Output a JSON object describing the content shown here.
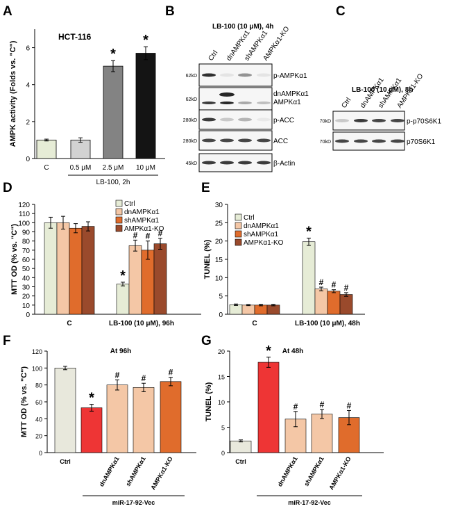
{
  "panel_letters": {
    "a": "A",
    "b": "B",
    "c": "C",
    "d": "D",
    "e": "E",
    "f": "F",
    "g": "G"
  },
  "colors": {
    "cream": "#e6ecd6",
    "ltgray": "#d2d2d2",
    "gray": "#838383",
    "black": "#141414",
    "peach": "#f4c7a6",
    "orange": "#e06c2c",
    "brown": "#9a4a2c",
    "red": "#ee3535",
    "offwhite": "#e8e8dc"
  },
  "chart_data": [
    {
      "panel": "A",
      "type": "bar",
      "title": "HCT-116",
      "ylabel": "AMPK activity (Folds vs. \"C\")",
      "ylim": [
        0,
        7
      ],
      "yticks": [
        0,
        2,
        4,
        6
      ],
      "categories": [
        "C",
        "0.5 μM",
        "2.5 μM",
        "10 μM"
      ],
      "values": [
        1.0,
        1.0,
        5.0,
        5.7
      ],
      "errors": [
        0.05,
        0.12,
        0.3,
        0.35
      ],
      "significance": [
        "",
        "",
        "*",
        "*"
      ],
      "group_label": "LB-100, 2h"
    },
    {
      "panel": "D",
      "type": "bar",
      "ylabel": "MTT OD (% vs. \"C\")",
      "ylim": [
        0,
        120
      ],
      "yticks": [
        0,
        10,
        20,
        30,
        40,
        50,
        60,
        70,
        80,
        90,
        100,
        110,
        120
      ],
      "categories": [
        "C",
        "LB-100 (10 μM), 96h"
      ],
      "series": [
        {
          "name": "Ctrl",
          "values": [
            100,
            33
          ],
          "errors": [
            6,
            2
          ],
          "significance": [
            "",
            "*"
          ]
        },
        {
          "name": "dnAMPKα1",
          "values": [
            100,
            75
          ],
          "errors": [
            7,
            6
          ],
          "significance": [
            "",
            "#"
          ]
        },
        {
          "name": "shAMPKα1",
          "values": [
            94,
            70
          ],
          "errors": [
            5,
            10
          ],
          "significance": [
            "",
            "#"
          ]
        },
        {
          "name": "AMPKα1-KO",
          "values": [
            96,
            77
          ],
          "errors": [
            5,
            6
          ],
          "significance": [
            "",
            "#"
          ]
        }
      ]
    },
    {
      "panel": "E",
      "type": "bar",
      "ylabel": "TUNEL (%)",
      "ylim": [
        0,
        30
      ],
      "yticks": [
        0,
        5,
        10,
        15,
        20,
        25,
        30
      ],
      "categories": [
        "C",
        "LB-100 (10 μM), 48h"
      ],
      "series": [
        {
          "name": "Ctrl",
          "values": [
            2.6,
            19.8
          ],
          "errors": [
            0.2,
            1.0
          ],
          "significance": [
            "",
            "*"
          ]
        },
        {
          "name": "dnAMPKα1",
          "values": [
            2.5,
            6.9
          ],
          "errors": [
            0.15,
            0.5
          ],
          "significance": [
            "",
            "#"
          ]
        },
        {
          "name": "shAMPKα1",
          "values": [
            2.5,
            6.3
          ],
          "errors": [
            0.2,
            0.4
          ],
          "significance": [
            "",
            "#"
          ]
        },
        {
          "name": "AMPKα1-KO",
          "values": [
            2.5,
            5.4
          ],
          "errors": [
            0.2,
            0.5
          ],
          "significance": [
            "",
            "#"
          ]
        }
      ]
    },
    {
      "panel": "F",
      "type": "bar",
      "title": "At 96h",
      "ylabel": "MTT OD (% vs. \"C\")",
      "ylim": [
        0,
        120
      ],
      "yticks": [
        0,
        20,
        40,
        60,
        80,
        100,
        120
      ],
      "categories": [
        "Ctrl",
        "",
        "dnAMPKα1",
        "shAMPKα1",
        "AMPKα1-KO"
      ],
      "values": [
        100,
        53,
        80,
        77,
        84
      ],
      "errors": [
        2,
        4,
        6,
        5,
        5
      ],
      "significance": [
        "",
        "*",
        "#",
        "#",
        "#"
      ],
      "group_label": "miR-17-92-Vec"
    },
    {
      "panel": "G",
      "type": "bar",
      "title": "At 48h",
      "ylabel": "TUNEL (%)",
      "ylim": [
        0,
        20
      ],
      "yticks": [
        0,
        5,
        10,
        15,
        20
      ],
      "categories": [
        "Ctrl",
        "",
        "dnAMPKα1",
        "shAMPKα1",
        "AMPKα1-KO"
      ],
      "values": [
        2.3,
        17.8,
        6.6,
        7.6,
        6.9
      ],
      "errors": [
        0.2,
        1.0,
        1.5,
        0.9,
        1.4
      ],
      "significance": [
        "",
        "*",
        "#",
        "#",
        "#"
      ],
      "group_label": "miR-17-92-Vec"
    }
  ],
  "blot_b": {
    "title": "LB-100 (10 μM), 4h",
    "lanes": [
      "Ctrl",
      "dnAMPKα1",
      "shAMPKα1",
      "AMPKα1-KO"
    ],
    "rows": [
      {
        "mw": "62kD",
        "label": "p-AMPKα1"
      },
      {
        "mw": "62kD",
        "label": "dnAMPKα1",
        "label2": "AMPKα1"
      },
      {
        "mw": "280kD",
        "label": "p-ACC"
      },
      {
        "mw": "280kD",
        "label": "ACC"
      },
      {
        "mw": "45kD",
        "label": "β-Actin"
      }
    ]
  },
  "blot_c": {
    "title": "LB-100 (10 μM), 8h",
    "lanes": [
      "Ctrl",
      "dnAMPKα1",
      "shAMPKα1",
      "AMPKα1-KO"
    ],
    "rows": [
      {
        "mw": "70kD",
        "label": "p-p70S6K1"
      },
      {
        "mw": "70kD",
        "label": "p70S6K1"
      }
    ]
  }
}
